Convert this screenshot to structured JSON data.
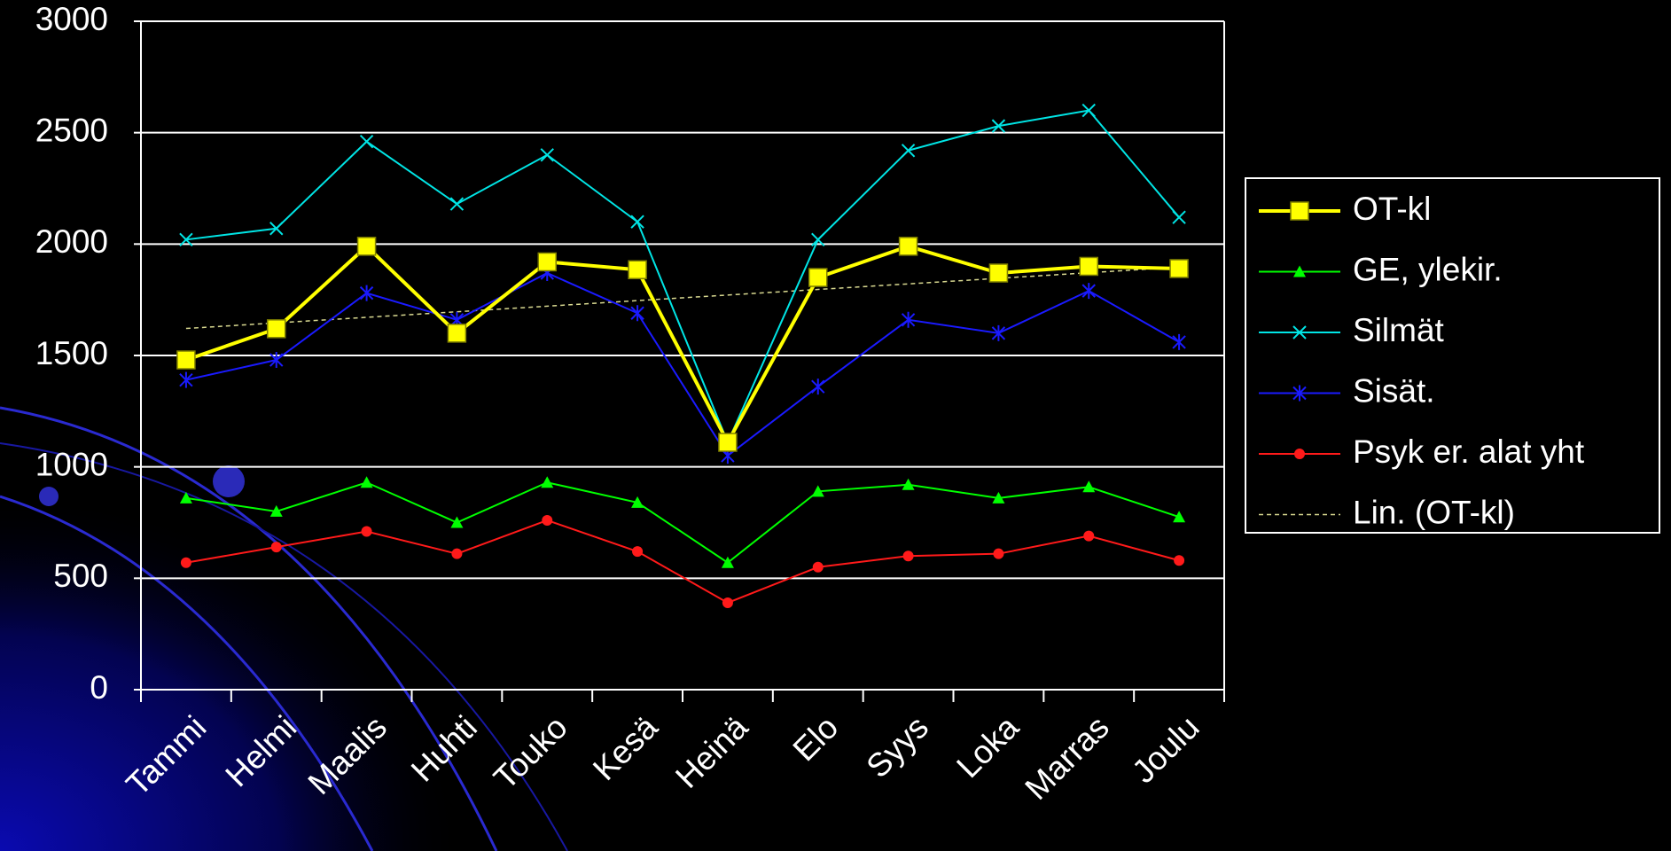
{
  "chart_data": {
    "type": "line",
    "categories": [
      "Tammi",
      "Helmi",
      "Maalis",
      "Huhti",
      "Touko",
      "Kesä",
      "Heinä",
      "Elo",
      "Syys",
      "Loka",
      "Marras",
      "Joulu"
    ],
    "ylim": [
      0,
      3000
    ],
    "yticks": [
      0,
      500,
      1000,
      1500,
      2000,
      2500,
      3000
    ],
    "grid": true,
    "legend": "right",
    "series": [
      {
        "name": "OT-kl",
        "color": "#ffff00",
        "marker": "square",
        "values": [
          1480,
          1620,
          1990,
          1600,
          1920,
          1885,
          1110,
          1850,
          1990,
          1870,
          1900,
          1890
        ]
      },
      {
        "name": "GE, ylekir.",
        "color": "#00ff00",
        "marker": "triangle",
        "values": [
          860,
          800,
          930,
          750,
          930,
          840,
          570,
          890,
          920,
          860,
          910,
          775
        ]
      },
      {
        "name": "Silmät",
        "color": "#00e5e5",
        "marker": "x",
        "values": [
          2020,
          2070,
          2460,
          2180,
          2400,
          2100,
          1110,
          2020,
          2420,
          2530,
          2600,
          2120
        ]
      },
      {
        "name": "Sisät.",
        "color": "#1a1aff",
        "marker": "asterisk",
        "values": [
          1390,
          1480,
          1780,
          1660,
          1870,
          1690,
          1050,
          1360,
          1660,
          1600,
          1790,
          1560
        ]
      },
      {
        "name": "Psyk er. alat yht",
        "color": "#ff1a1a",
        "marker": "circle",
        "values": [
          570,
          640,
          710,
          610,
          760,
          620,
          390,
          550,
          600,
          610,
          690,
          580
        ]
      },
      {
        "name": "Lin. (OT-kl)",
        "color": "#d8d890",
        "trendline": true
      }
    ]
  }
}
